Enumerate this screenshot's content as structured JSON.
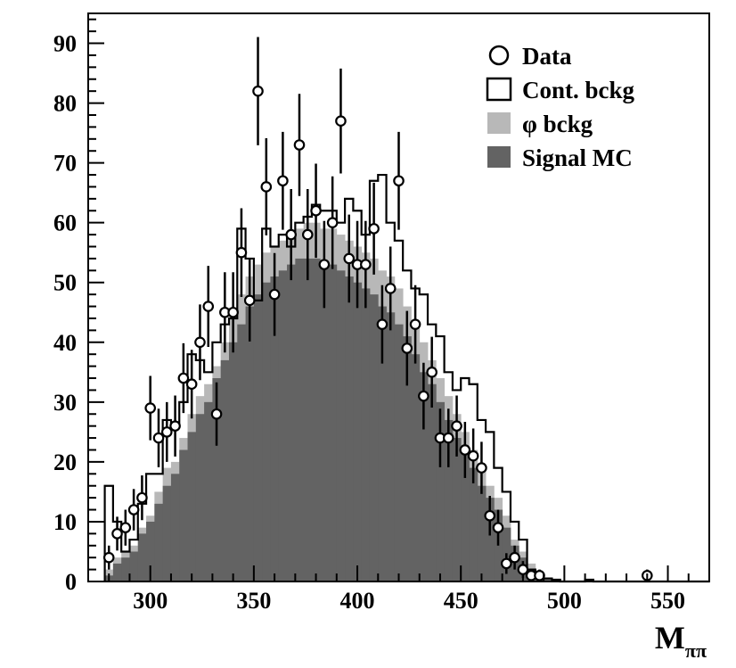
{
  "chart_data": {
    "type": "histogram",
    "title": "",
    "xlabel": "M",
    "xlabel_subscript": "ππ",
    "ylabel": "",
    "xlim": [
      270,
      570
    ],
    "ylim": [
      0,
      95
    ],
    "xticks": [
      300,
      350,
      400,
      450,
      500,
      550
    ],
    "yticks": [
      0,
      10,
      20,
      30,
      40,
      50,
      60,
      70,
      80,
      90
    ],
    "grid": false,
    "legend_position": "top-right",
    "bin_width": 4,
    "bin_edges_start": 278,
    "legend": [
      {
        "label": "Data",
        "style": "open-circle"
      },
      {
        "label": "Cont. bckg",
        "style": "open-box"
      },
      {
        "label": "φ bckg",
        "style": "light-gray-fill"
      },
      {
        "label": "Signal MC",
        "style": "dark-gray-fill"
      }
    ],
    "series": [
      {
        "name": "Cont. bckg",
        "kind": "step-outline",
        "values": [
          16,
          10,
          5,
          7,
          13,
          18,
          18,
          27,
          26,
          30,
          38,
          37,
          35,
          40,
          43,
          44,
          59,
          54,
          47,
          59,
          56,
          58,
          56,
          60,
          61,
          63,
          62,
          62,
          60,
          64,
          62,
          58,
          67,
          68,
          60,
          57,
          52,
          49,
          48,
          43,
          41,
          35,
          32,
          34,
          33,
          27,
          25,
          19,
          15,
          10,
          7,
          2,
          1,
          0.5,
          0.3,
          0,
          0,
          0,
          0.3,
          0,
          0,
          0,
          0,
          0,
          0,
          0,
          0,
          0,
          0,
          0,
          0,
          0,
          0
        ]
      },
      {
        "name": "φ bckg",
        "kind": "filled",
        "color": "#b8b8b8",
        "values": [
          2,
          4,
          5,
          6,
          9,
          11,
          15,
          19,
          20,
          24,
          28,
          31,
          33,
          36,
          40,
          44,
          48,
          51,
          53,
          55,
          56,
          57,
          58,
          59,
          60,
          60,
          59,
          59,
          58,
          57,
          56,
          55,
          54,
          52,
          51,
          49,
          46,
          43,
          40,
          37,
          34,
          31,
          28,
          25,
          22,
          19,
          16,
          14,
          11,
          7,
          5,
          3,
          1.5,
          0.5,
          0.2,
          0,
          0,
          0,
          0,
          0,
          0,
          0,
          0,
          0,
          0,
          0,
          0,
          0,
          0,
          0,
          0,
          0,
          0
        ]
      },
      {
        "name": "Signal MC",
        "kind": "filled",
        "color": "#636363",
        "values": [
          1,
          3,
          4,
          5,
          8,
          10,
          13,
          16,
          18,
          22,
          25,
          28,
          30,
          34,
          37,
          40,
          43,
          46,
          48,
          50,
          51,
          52,
          53,
          54,
          54,
          54,
          53,
          53,
          52,
          51,
          50,
          49,
          48,
          46,
          45,
          43,
          41,
          38,
          35,
          33,
          30,
          27,
          24,
          22,
          19,
          16,
          14,
          12,
          9,
          6,
          4,
          2,
          1,
          0.3,
          0.1,
          0,
          0,
          0,
          0,
          0,
          0,
          0,
          0,
          0,
          0,
          0,
          0,
          0,
          0,
          0,
          0,
          0,
          0
        ]
      },
      {
        "name": "Data",
        "kind": "points-with-errors",
        "x": [
          280,
          284,
          288,
          292,
          296,
          300,
          304,
          308,
          312,
          316,
          320,
          324,
          328,
          332,
          336,
          340,
          344,
          348,
          352,
          356,
          360,
          364,
          368,
          372,
          376,
          380,
          384,
          388,
          392,
          396,
          400,
          404,
          408,
          412,
          416,
          420,
          424,
          428,
          432,
          436,
          440,
          444,
          448,
          452,
          456,
          460,
          464,
          468,
          472,
          476,
          480,
          484,
          488,
          540
        ],
        "y": [
          4,
          8,
          9,
          12,
          14,
          29,
          24,
          25,
          26,
          34,
          33,
          40,
          46,
          28,
          45,
          45,
          55,
          47,
          82,
          66,
          48,
          67,
          58,
          73,
          58,
          62,
          53,
          60,
          77,
          54,
          53,
          53,
          59,
          43,
          49,
          67,
          39,
          43,
          31,
          35,
          24,
          24,
          26,
          22,
          21,
          19,
          11,
          9,
          3,
          4,
          2,
          1,
          1,
          1
        ]
      }
    ]
  }
}
